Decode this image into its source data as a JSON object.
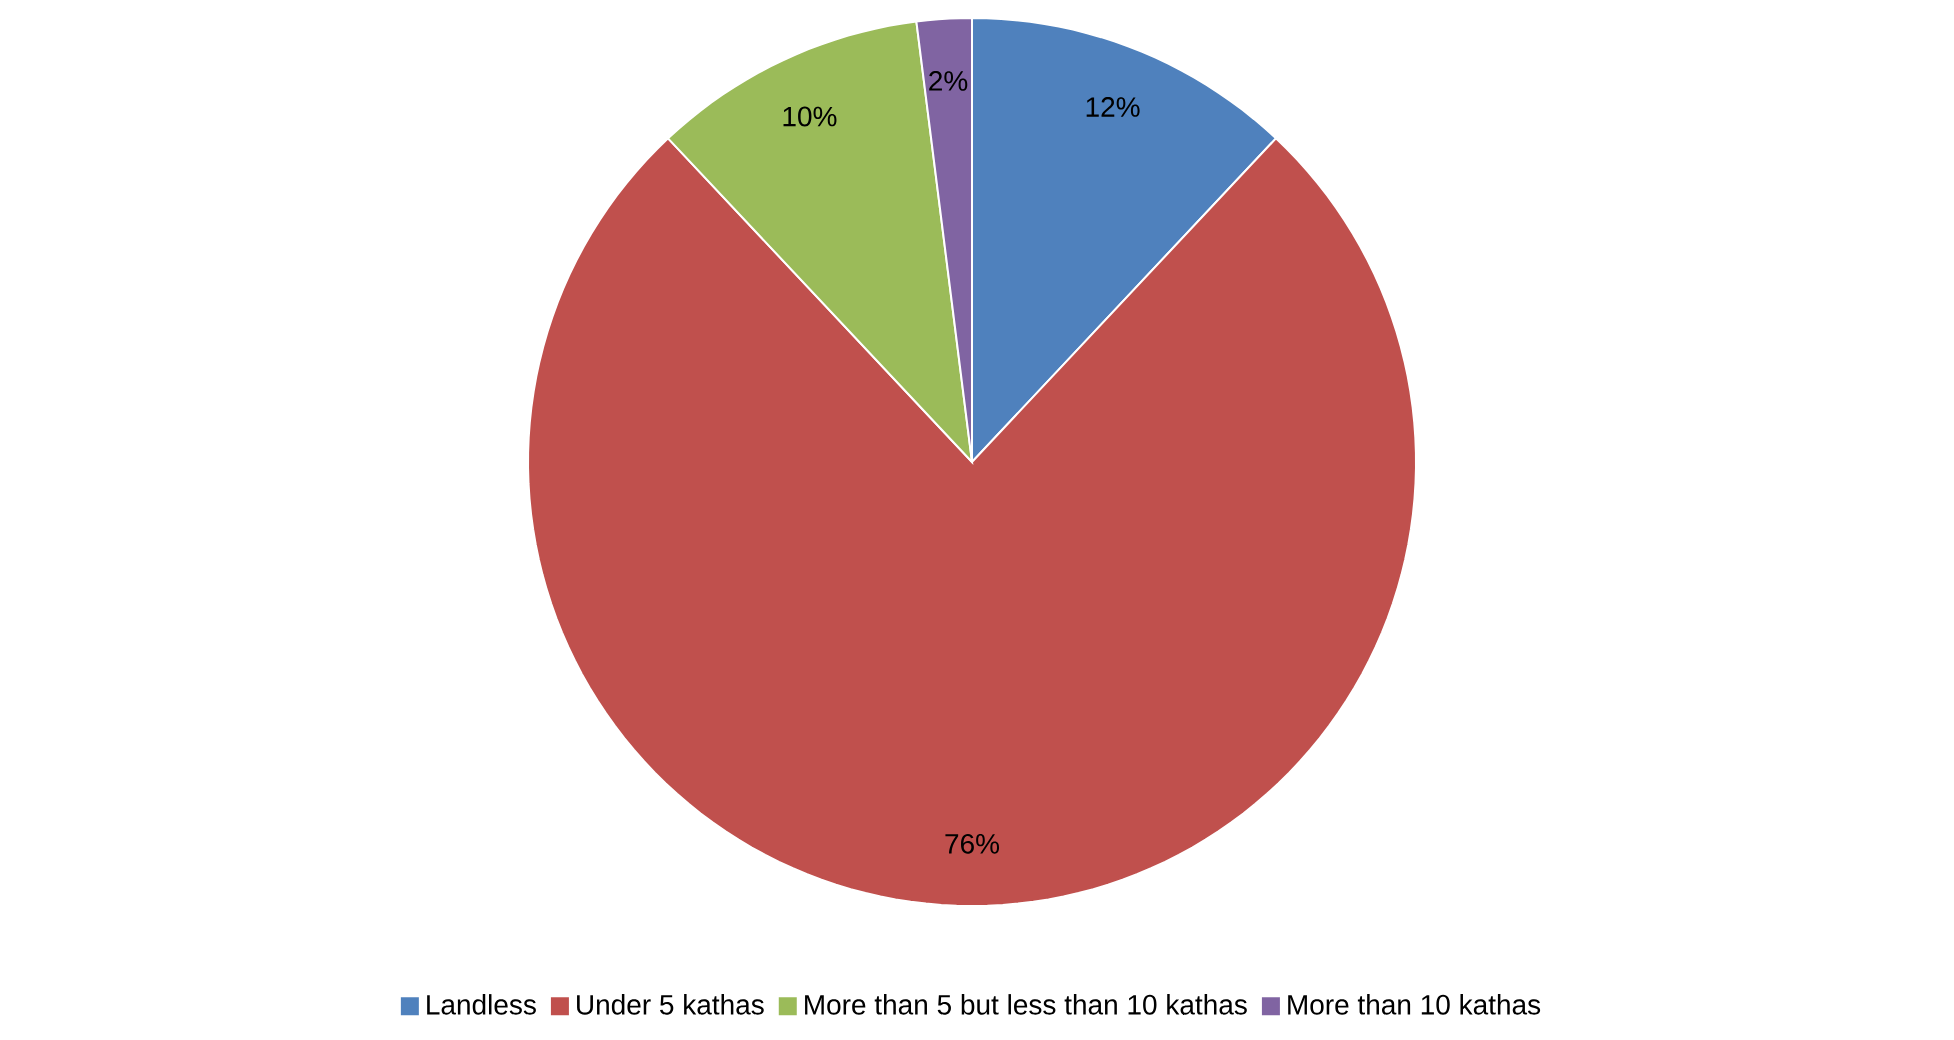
{
  "chart_data": {
    "type": "pie",
    "categories": [
      "Landless",
      "Under 5 kathas",
      "More than 5 but less than 10 kathas",
      "More than 10 kathas"
    ],
    "values": [
      12,
      76,
      10,
      2
    ],
    "colors": [
      "#4f81bd",
      "#c0504d",
      "#9bbb59",
      "#8064a2"
    ],
    "value_labels": [
      "12%",
      "76%",
      "10%",
      "2%"
    ],
    "legend": "bottom"
  }
}
